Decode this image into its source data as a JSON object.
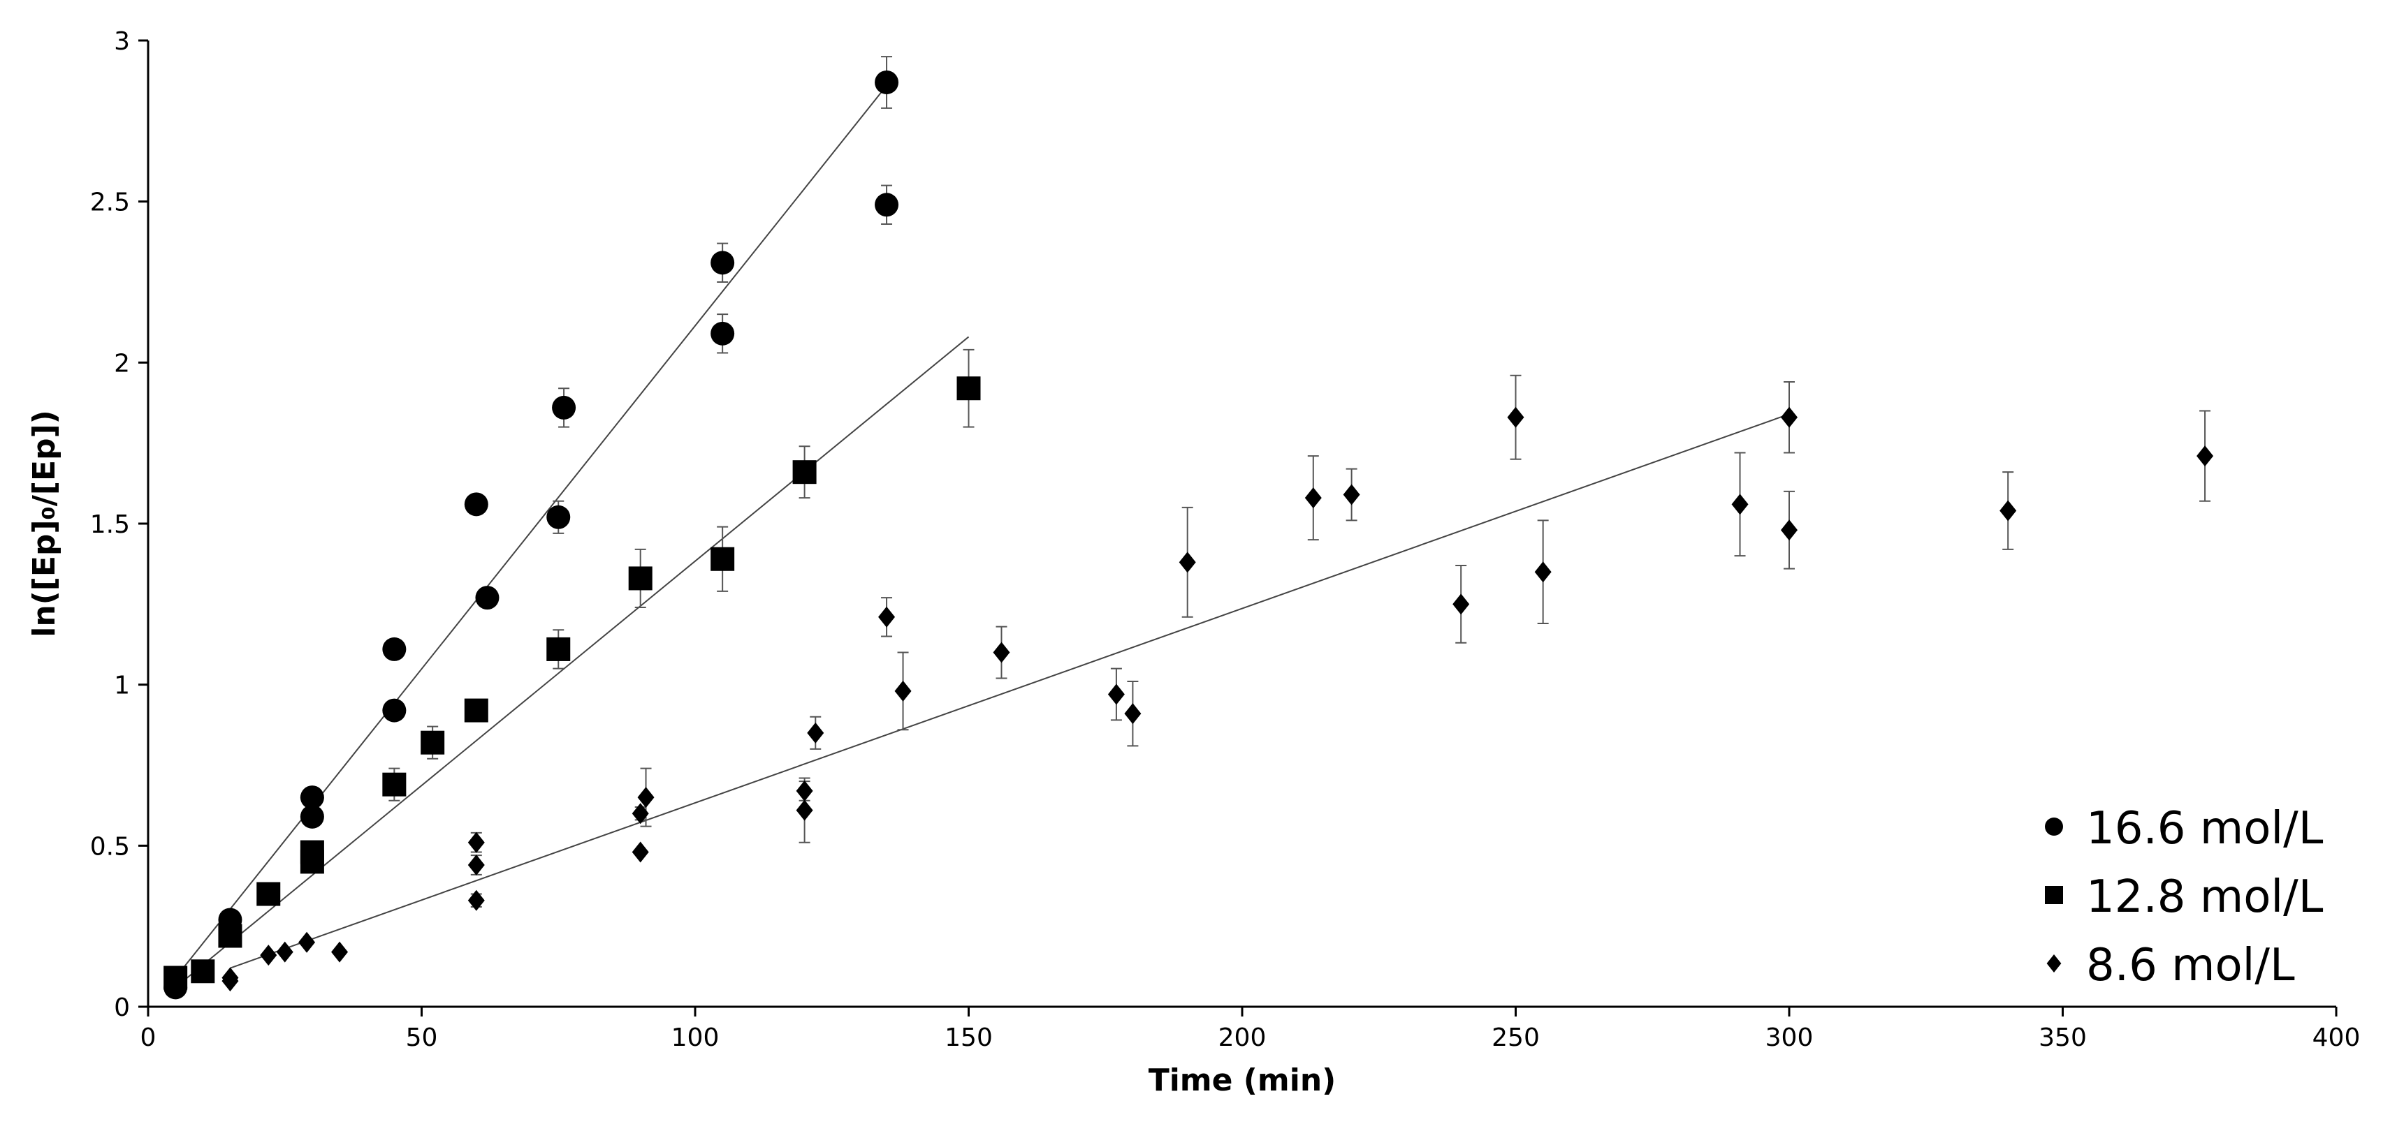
{
  "chart_data": {
    "type": "scatter",
    "title": "",
    "xlabel": "Time (min)",
    "ylabel": "ln([Ep]₀/[Ep])",
    "xlim": [
      0,
      400
    ],
    "ylim": [
      0,
      3
    ],
    "xticks": [
      0,
      50,
      100,
      150,
      200,
      250,
      300,
      350,
      400
    ],
    "yticks": [
      0,
      0.5,
      1,
      1.5,
      2,
      2.5,
      3
    ],
    "xtick_labels": [
      "0",
      "50",
      "100",
      "150",
      "200",
      "250",
      "300",
      "350",
      "400"
    ],
    "ytick_labels": [
      "0",
      "0.5",
      "1",
      "1.5",
      "2",
      "2.5",
      "3"
    ],
    "grid": false,
    "legend_position": "bottom-right",
    "series": [
      {
        "name": "16.6 mol/L",
        "marker": "circle",
        "color": "#000000",
        "points": [
          {
            "x": 5,
            "y": 0.06,
            "err": 0
          },
          {
            "x": 15,
            "y": 0.27,
            "err": 0
          },
          {
            "x": 30,
            "y": 0.59,
            "err": 0
          },
          {
            "x": 30,
            "y": 0.65,
            "err": 0
          },
          {
            "x": 45,
            "y": 0.92,
            "err": 0
          },
          {
            "x": 45,
            "y": 1.11,
            "err": 0
          },
          {
            "x": 60,
            "y": 1.56,
            "err": 0.03
          },
          {
            "x": 62,
            "y": 1.27,
            "err": 0
          },
          {
            "x": 75,
            "y": 1.52,
            "err": 0.05
          },
          {
            "x": 76,
            "y": 1.86,
            "err": 0.06
          },
          {
            "x": 105,
            "y": 2.09,
            "err": 0.06
          },
          {
            "x": 105,
            "y": 2.31,
            "err": 0.06
          },
          {
            "x": 135,
            "y": 2.49,
            "err": 0.06
          },
          {
            "x": 135,
            "y": 2.87,
            "err": 0.08
          }
        ],
        "fit": {
          "x": [
            5,
            135
          ],
          "y": [
            0.09,
            2.86
          ]
        }
      },
      {
        "name": "12.8 mol/L",
        "marker": "square",
        "color": "#000000",
        "points": [
          {
            "x": 5,
            "y": 0.09,
            "err": 0
          },
          {
            "x": 10,
            "y": 0.11,
            "err": 0
          },
          {
            "x": 15,
            "y": 0.22,
            "err": 0
          },
          {
            "x": 22,
            "y": 0.35,
            "err": 0
          },
          {
            "x": 30,
            "y": 0.45,
            "err": 0.03
          },
          {
            "x": 30,
            "y": 0.48,
            "err": 0
          },
          {
            "x": 45,
            "y": 0.69,
            "err": 0.05
          },
          {
            "x": 52,
            "y": 0.82,
            "err": 0.05
          },
          {
            "x": 60,
            "y": 0.92,
            "err": 0.03
          },
          {
            "x": 75,
            "y": 1.11,
            "err": 0.06
          },
          {
            "x": 90,
            "y": 1.33,
            "err": 0.09
          },
          {
            "x": 105,
            "y": 1.39,
            "err": 0.1
          },
          {
            "x": 120,
            "y": 1.66,
            "err": 0.08
          },
          {
            "x": 150,
            "y": 1.92,
            "err": 0.12
          }
        ],
        "fit": {
          "x": [
            5,
            150
          ],
          "y": [
            0.06,
            2.08
          ]
        }
      },
      {
        "name": "8.6 mol/L",
        "marker": "diamond",
        "color": "#000000",
        "points": [
          {
            "x": 15,
            "y": 0.08,
            "err": 0
          },
          {
            "x": 15,
            "y": 0.09,
            "err": 0
          },
          {
            "x": 22,
            "y": 0.16,
            "err": 0
          },
          {
            "x": 25,
            "y": 0.17,
            "err": 0
          },
          {
            "x": 29,
            "y": 0.2,
            "err": 0
          },
          {
            "x": 35,
            "y": 0.17,
            "err": 0
          },
          {
            "x": 60,
            "y": 0.33,
            "err": 0.02
          },
          {
            "x": 60,
            "y": 0.44,
            "err": 0.03
          },
          {
            "x": 60,
            "y": 0.51,
            "err": 0.03
          },
          {
            "x": 90,
            "y": 0.48,
            "err": 0
          },
          {
            "x": 90,
            "y": 0.6,
            "err": 0.02
          },
          {
            "x": 91,
            "y": 0.65,
            "err": 0.09
          },
          {
            "x": 120,
            "y": 0.61,
            "err": 0.1
          },
          {
            "x": 120,
            "y": 0.67,
            "err": 0.03
          },
          {
            "x": 122,
            "y": 0.85,
            "err": 0.05
          },
          {
            "x": 135,
            "y": 1.21,
            "err": 0.06
          },
          {
            "x": 138,
            "y": 0.98,
            "err": 0.12
          },
          {
            "x": 156,
            "y": 1.1,
            "err": 0.08
          },
          {
            "x": 177,
            "y": 0.97,
            "err": 0.08
          },
          {
            "x": 180,
            "y": 0.91,
            "err": 0.1
          },
          {
            "x": 190,
            "y": 1.38,
            "err": 0.17
          },
          {
            "x": 213,
            "y": 1.58,
            "err": 0.13
          },
          {
            "x": 220,
            "y": 1.59,
            "err": 0.08
          },
          {
            "x": 240,
            "y": 1.25,
            "err": 0.12
          },
          {
            "x": 250,
            "y": 1.83,
            "err": 0.13
          },
          {
            "x": 255,
            "y": 1.35,
            "err": 0.16
          },
          {
            "x": 291,
            "y": 1.56,
            "err": 0.16
          },
          {
            "x": 300,
            "y": 1.48,
            "err": 0.12
          },
          {
            "x": 300,
            "y": 1.83,
            "err": 0.11
          },
          {
            "x": 340,
            "y": 1.54,
            "err": 0.12
          },
          {
            "x": 376,
            "y": 1.71,
            "err": 0.14
          }
        ],
        "fit": {
          "x": [
            15,
            300
          ],
          "y": [
            0.12,
            1.84
          ]
        }
      }
    ]
  }
}
